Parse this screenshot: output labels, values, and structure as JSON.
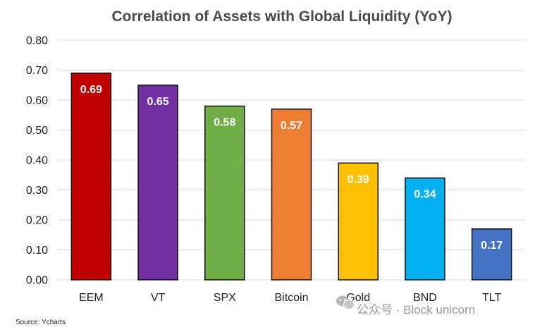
{
  "chart_data": {
    "type": "bar",
    "title": "Correlation of Assets with Global Liquidity (YoY)",
    "categories": [
      "EEM",
      "VT",
      "SPX",
      "Bitcoin",
      "Gold",
      "BND",
      "TLT"
    ],
    "values": [
      0.69,
      0.65,
      0.58,
      0.57,
      0.39,
      0.34,
      0.17
    ],
    "data_labels": [
      "0.69",
      "0.65",
      "0.58",
      "0.57",
      "0.39",
      "0.34",
      "0.17"
    ],
    "colors": [
      "#c00000",
      "#7030a0",
      "#70ad47",
      "#ed7d31",
      "#ffc000",
      "#00b0f0",
      "#4472c4"
    ],
    "ylim": [
      0,
      0.8
    ],
    "yticks": [
      "0.00",
      "0.10",
      "0.20",
      "0.30",
      "0.40",
      "0.50",
      "0.60",
      "0.70",
      "0.80"
    ],
    "grid": true,
    "legend": "none",
    "xlabel": "",
    "ylabel": ""
  },
  "source": "Source: Ycharts",
  "watermark": {
    "text": "公众号 · Block unicorn",
    "icon": "wechat-icon"
  }
}
